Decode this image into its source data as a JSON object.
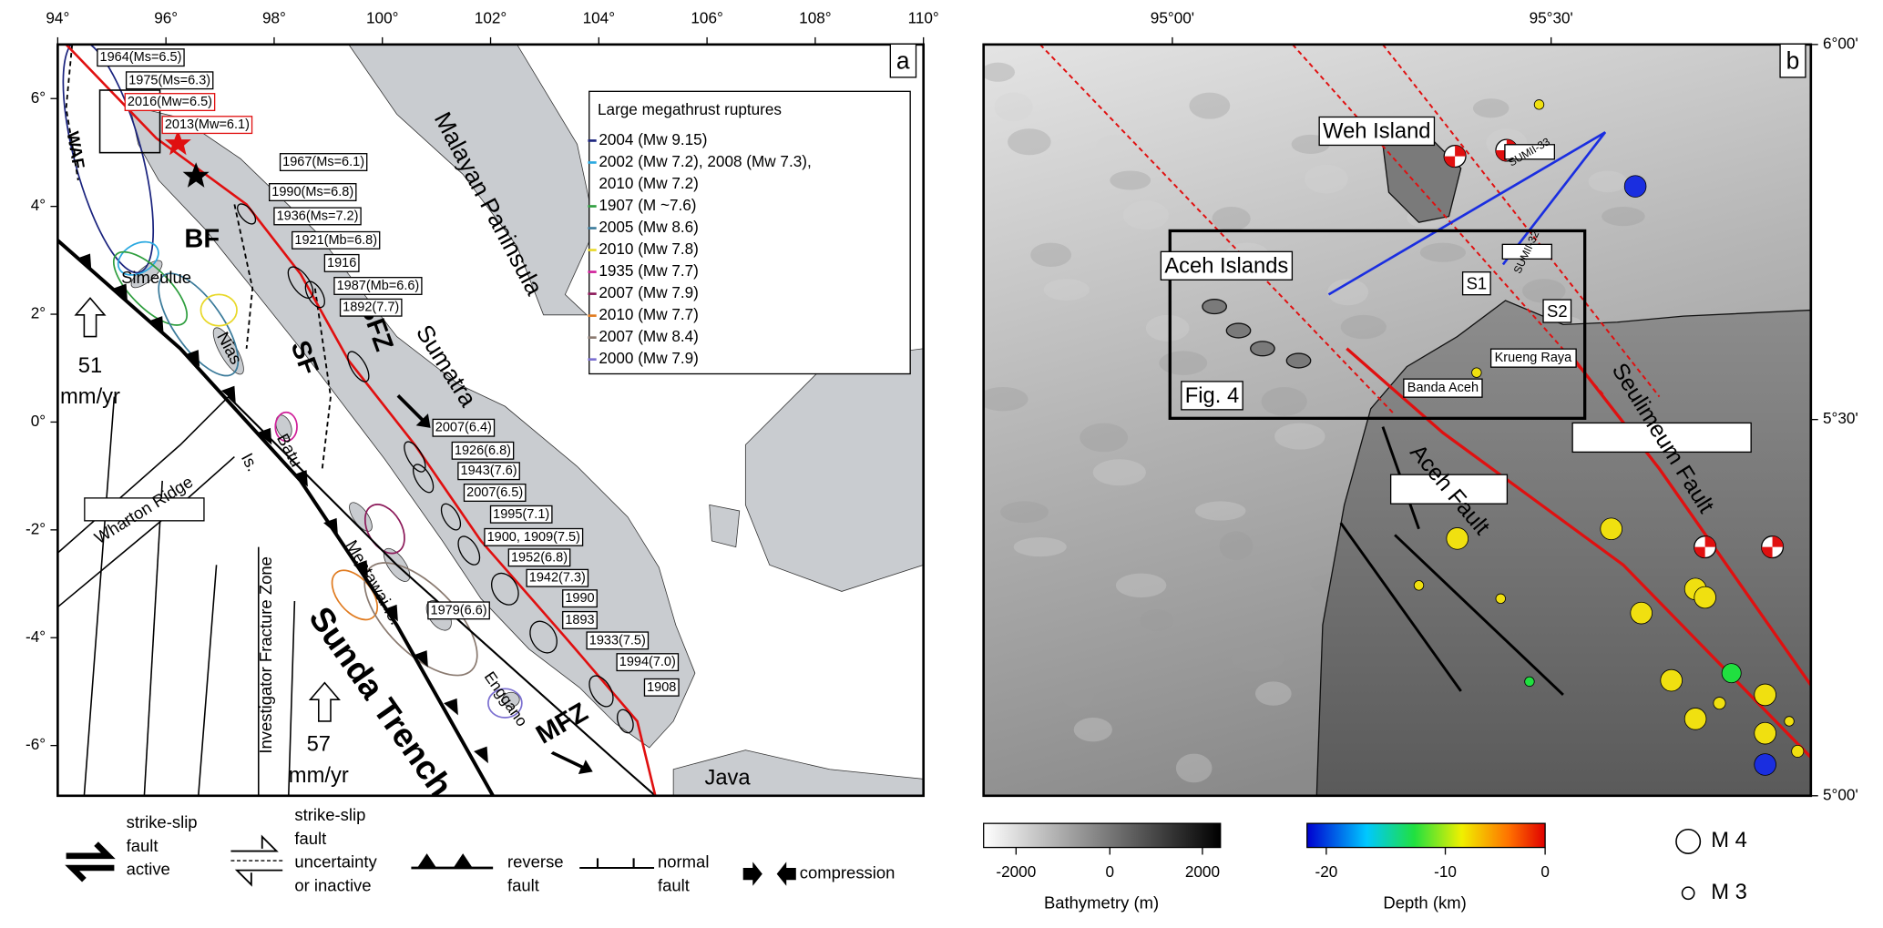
{
  "panel_a": {
    "label": "a",
    "lon_ticks": [
      "94°",
      "96°",
      "98°",
      "100°",
      "102°",
      "104°",
      "106°",
      "108°",
      "110°"
    ],
    "lat_ticks": [
      "6°",
      "4°",
      "2°",
      "0°",
      "-2°",
      "-4°",
      "-6°"
    ],
    "events": [
      "1964(Ms=6.5)",
      "1975(Ms=6.3)",
      "1967(Ms=6.1)",
      "1990(Ms=6.8)",
      "1936(Ms=7.2)",
      "1921(Mb=6.8)",
      "1916",
      "1987(Mb=6.6)",
      "1892(7.7)",
      "2007(6.4)",
      "1926(6.8)",
      "1943(7.6)",
      "2007(6.5)",
      "1995(7.1)",
      "1900, 1909(7.5)",
      "1952(6.8)",
      "1942(7.3)",
      "1990",
      "1893",
      "1933(7.5)",
      "1979(6.6)",
      "1994(7.0)",
      "1908"
    ],
    "recent_events": [
      "2016(Mw=6.5)",
      "2013(Mw=6.1)"
    ],
    "legend": {
      "title": "Large megathrust ruptures",
      "entries": [
        {
          "lines": [
            "2004 (Mw 9.15)"
          ],
          "color": "#1a237e"
        },
        {
          "lines": [
            "2002 (Mw 7.2), 2008 (Mw 7.3),",
            "2010 (Mw 7.2)"
          ],
          "color": "#29a8e0"
        },
        {
          "lines": [
            "1907 (M ~7.6)"
          ],
          "color": "#2e9e3e"
        },
        {
          "lines": [
            "2005 (Mw 8.6)"
          ],
          "color": "#3a7a9a"
        },
        {
          "lines": [
            "2010 (Mw 7.8)"
          ],
          "color": "#e8d82a"
        },
        {
          "lines": [
            "1935 (Mw 7.7)"
          ],
          "color": "#d0209a"
        },
        {
          "lines": [
            "2007 (Mw 7.9)"
          ],
          "color": "#8c1a5a"
        },
        {
          "lines": [
            "2010 (Mw 7.7)"
          ],
          "color": "#e07b20"
        },
        {
          "lines": [
            "2007 (Mw 8.4)"
          ],
          "color": "#8a7a70"
        },
        {
          "lines": [
            "2000 (Mw 7.9)"
          ],
          "color": "#7b6fd0"
        }
      ]
    },
    "places": [
      "Malayan Paninsula",
      "Sumatra",
      "Simeulue",
      "Nias",
      "Batu",
      "Is.",
      "Mentawai Is.",
      "Enggano",
      "Java",
      "Wharton Ridge",
      "Investigator Fracture Zone",
      "Sunda Trench"
    ],
    "faults": [
      "WAF",
      "BF",
      "SF",
      "SFZ",
      "MFZ"
    ],
    "plate_rates": [
      {
        "value": "51",
        "unit": "mm/yr"
      },
      {
        "value": "57",
        "unit": "mm/yr"
      }
    ]
  },
  "panel_b": {
    "label": "b",
    "lon_ticks": [
      "95°00'",
      "95°30'"
    ],
    "lat_ticks": [
      "6°00'",
      "5°30'",
      "5°00'"
    ],
    "places": [
      "Weh Island",
      "Aceh Islands",
      "Banda Aceh",
      "Krueng Raya"
    ],
    "sites": [
      "S1",
      "S2"
    ],
    "profiles": [
      "SUMII-33",
      "SUMII-32"
    ],
    "box": "Fig. 4",
    "faults": [
      "Aceh Fault",
      "Seulimeum Fault"
    ]
  },
  "colorbars": [
    {
      "title": "Bathymetry (m)",
      "ticks": [
        "-2000",
        "0",
        "2000"
      ]
    },
    {
      "title": "Depth (km)",
      "ticks": [
        "-20",
        "-10",
        "0"
      ]
    }
  ],
  "magnitude_legend": [
    "M 4",
    "M 3"
  ],
  "fault_legend": [
    {
      "lines": [
        "strike-slip",
        "fault",
        "active"
      ]
    },
    {
      "lines": [
        "strike-slip",
        "fault",
        "uncertainty",
        "or inactive"
      ]
    },
    {
      "lines": [
        "reverse",
        "fault"
      ]
    },
    {
      "lines": [
        "normal",
        "fault"
      ]
    },
    {
      "lines": [
        "compression"
      ]
    }
  ]
}
